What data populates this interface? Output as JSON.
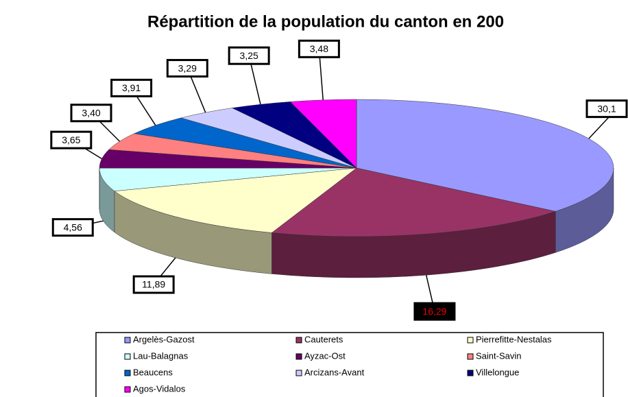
{
  "chart_data": {
    "type": "pie3d",
    "title": "Répartition de la population du canton en 200",
    "categories": [
      "Argelès-Gazost",
      "Cauterets",
      "Pierrefitte-Nestalas",
      "Lau-Balagnas",
      "Ayzac-Ost",
      "Saint-Savin",
      "Beaucens",
      "Arcizans-Avant",
      "Villelongue",
      "Agos-Vidalos"
    ],
    "values": [
      30.1,
      16.29,
      11.89,
      4.56,
      3.65,
      3.4,
      3.91,
      3.29,
      3.25,
      3.48
    ],
    "value_labels": [
      "30,1",
      "16,29",
      "11,89",
      "4,56",
      "3,65",
      "3,40",
      "3,91",
      "3,29",
      "3,25",
      "3,48"
    ],
    "colors": [
      "#9999ff",
      "#993366",
      "#ffffcc",
      "#ccffff",
      "#660066",
      "#ff8080",
      "#0066cc",
      "#ccccff",
      "#000080",
      "#ff00ff"
    ]
  }
}
